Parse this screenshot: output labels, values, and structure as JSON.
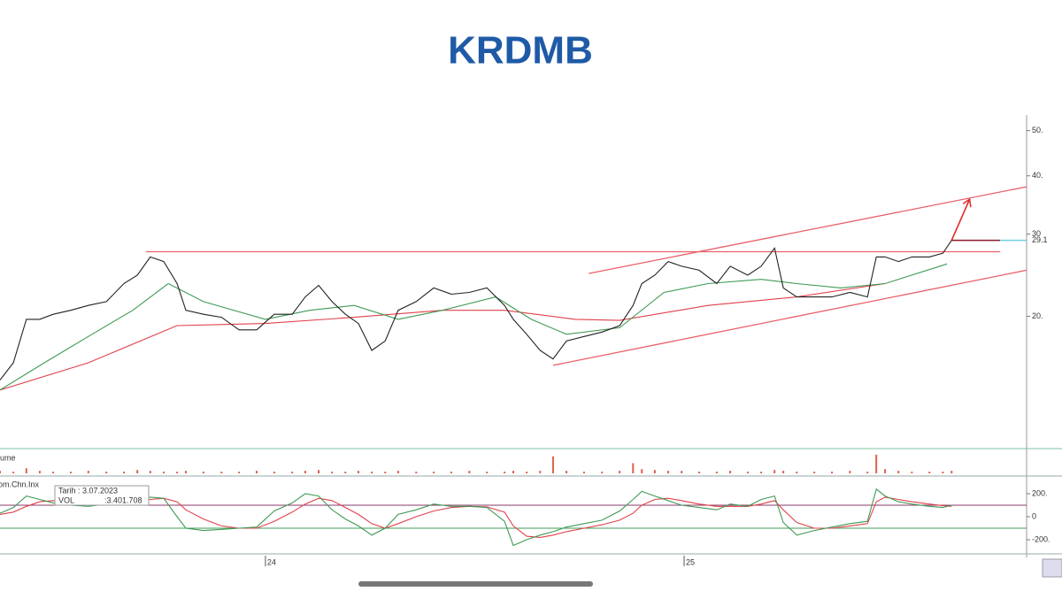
{
  "chart_data": [
    {
      "type": "line",
      "title": "KRDMB",
      "log_scale": true,
      "xlim": [
        23.366,
        25.818
      ],
      "xticks": [
        {
          "value": 24,
          "label": "24"
        },
        {
          "value": 25,
          "label": "25"
        }
      ],
      "ylim": [
        10.5,
        54
      ],
      "yticks": [
        {
          "value": 20,
          "label": "20."
        },
        30,
        {
          "value": 40,
          "label": "40."
        },
        {
          "value": 50,
          "label": "50."
        }
      ],
      "series": [
        {
          "color": "#222222",
          "x": [
            23.366,
            23.398,
            23.429,
            23.461,
            23.493,
            23.535,
            23.577,
            23.62,
            23.662,
            23.694,
            23.725,
            23.757,
            23.789,
            23.81,
            23.852,
            23.895,
            23.937,
            23.979,
            24.021,
            24.064,
            24.095,
            24.127,
            24.159,
            24.191,
            24.222,
            24.254,
            24.286,
            24.317,
            24.36,
            24.402,
            24.444,
            24.487,
            24.529,
            24.571,
            24.592,
            24.624,
            24.656,
            24.687,
            24.719,
            24.761,
            24.804,
            24.846,
            24.878,
            24.899,
            24.93,
            24.962,
            24.994,
            25.036,
            25.078,
            25.11,
            25.152,
            25.184,
            25.216,
            25.237,
            25.269,
            25.311,
            25.353,
            25.396,
            25.438,
            25.459,
            25.48,
            25.512,
            25.544,
            25.586,
            25.618,
            25.639
          ],
          "values": [
            14.6,
            15.9,
            19.7,
            19.7,
            20.2,
            20.6,
            21.1,
            21.5,
            23.5,
            24.5,
            26.8,
            26.2,
            23.5,
            20.6,
            20.2,
            19.9,
            18.7,
            18.7,
            20.2,
            20.2,
            22.0,
            23.3,
            21.5,
            20.2,
            19.3,
            16.9,
            17.7,
            20.6,
            21.5,
            23.0,
            22.3,
            22.5,
            23.0,
            21.1,
            19.7,
            18.3,
            16.9,
            16.2,
            17.7,
            18.1,
            18.5,
            19.1,
            21.1,
            23.5,
            24.5,
            26.2,
            25.6,
            25.1,
            23.5,
            25.6,
            24.5,
            25.6,
            28.0,
            23.0,
            22.0,
            22.0,
            22.0,
            22.5,
            22.0,
            26.8,
            26.8,
            26.2,
            26.8,
            26.8,
            27.3,
            29.1
          ]
        },
        {
          "color": "#3f9a55",
          "x": [
            23.366,
            23.472,
            23.577,
            23.683,
            23.768,
            23.852,
            24.0,
            24.106,
            24.212,
            24.317,
            24.423,
            24.55,
            24.635,
            24.719,
            24.846,
            24.952,
            25.057,
            25.184,
            25.269,
            25.374,
            25.48,
            25.628
          ],
          "values": [
            13.9,
            15.9,
            18.1,
            20.6,
            23.5,
            21.5,
            19.7,
            20.6,
            21.1,
            19.7,
            20.6,
            22.0,
            19.7,
            18.3,
            18.9,
            22.5,
            23.5,
            24.0,
            23.5,
            23.0,
            23.5,
            25.9
          ]
        },
        {
          "color": "#e0404a",
          "x": [
            23.366,
            23.577,
            23.789,
            24.0,
            24.212,
            24.423,
            24.571,
            24.74,
            24.846,
            25.057,
            25.269,
            25.48
          ],
          "values": [
            13.9,
            15.9,
            19.1,
            19.3,
            19.9,
            20.6,
            20.6,
            19.7,
            19.6,
            21.1,
            22.0,
            23.5
          ]
        }
      ],
      "trendlines": [
        {
          "color": "#e8606a",
          "x": [
            23.715,
            25.755
          ],
          "values": [
            27.5,
            27.5
          ]
        },
        {
          "color": "#e8606a",
          "x": [
            24.772,
            25.818
          ],
          "values": [
            24.7,
            37.9
          ]
        },
        {
          "color": "#e8606a",
          "x": [
            24.687,
            25.818
          ],
          "values": [
            15.7,
            25.1
          ]
        }
      ],
      "arrow": {
        "color": "#e02828",
        "x": [
          25.639,
          25.681
        ],
        "values": [
          29.1,
          35.5
        ]
      }
    },
    {
      "type": "bar",
      "label": "lume",
      "color": "#e0604f",
      "ylim": [
        0,
        25
      ],
      "values": [
        3,
        2,
        6,
        3,
        2,
        2,
        3,
        2,
        2,
        4,
        3,
        2,
        2,
        3,
        2,
        2,
        2,
        3,
        2,
        2,
        3,
        4,
        2,
        2,
        3,
        2,
        2,
        3,
        2,
        2,
        2,
        3,
        2,
        2,
        3,
        2,
        3,
        20,
        3,
        2,
        2,
        3,
        12,
        5,
        4,
        3,
        3,
        2,
        2,
        3,
        2,
        2,
        4,
        3,
        2,
        2,
        2,
        3,
        2,
        22,
        5,
        3,
        2,
        2,
        2,
        3
      ]
    },
    {
      "type": "line",
      "label": "om.Chn.Inx",
      "ylim": [
        -315,
        338
      ],
      "yticks": [
        {
          "value": 200,
          "label": "200."
        },
        0,
        {
          "value": -200,
          "label": "-200."
        }
      ],
      "levels": [
        100,
        -100
      ],
      "level_colors": [
        "#8a3a6a",
        "#3f9a55"
      ],
      "series": [
        {
          "color": "#3f9a55",
          "values": [
            30,
            80,
            180,
            150,
            120,
            100,
            90,
            110,
            140,
            150,
            170,
            160,
            0,
            -100,
            -120,
            -110,
            -100,
            -90,
            50,
            120,
            200,
            180,
            60,
            -20,
            -80,
            -160,
            -100,
            20,
            60,
            110,
            90,
            90,
            80,
            -40,
            -250,
            -200,
            -160,
            -130,
            -90,
            -60,
            -30,
            50,
            150,
            220,
            180,
            140,
            100,
            80,
            60,
            110,
            90,
            150,
            180,
            -50,
            -160,
            -120,
            -90,
            -60,
            -40,
            240,
            180,
            130,
            110,
            90,
            80,
            100
          ]
        },
        {
          "color": "#e0404a",
          "values": [
            20,
            40,
            90,
            130,
            140,
            125,
            105,
            100,
            110,
            130,
            150,
            160,
            130,
            60,
            -20,
            -80,
            -100,
            -100,
            -40,
            40,
            110,
            160,
            140,
            80,
            20,
            -60,
            -100,
            -60,
            0,
            50,
            80,
            90,
            85,
            40,
            -80,
            -170,
            -180,
            -160,
            -130,
            -100,
            -70,
            -30,
            30,
            100,
            150,
            160,
            140,
            110,
            90,
            90,
            90,
            110,
            140,
            60,
            -50,
            -100,
            -100,
            -80,
            -60,
            130,
            170,
            150,
            130,
            110,
            95,
            90
          ]
        }
      ],
      "tooltip": {
        "date": "Tarih : 3.07.2023",
        "name": "VOL",
        "value": ":3.401.708"
      }
    }
  ]
}
